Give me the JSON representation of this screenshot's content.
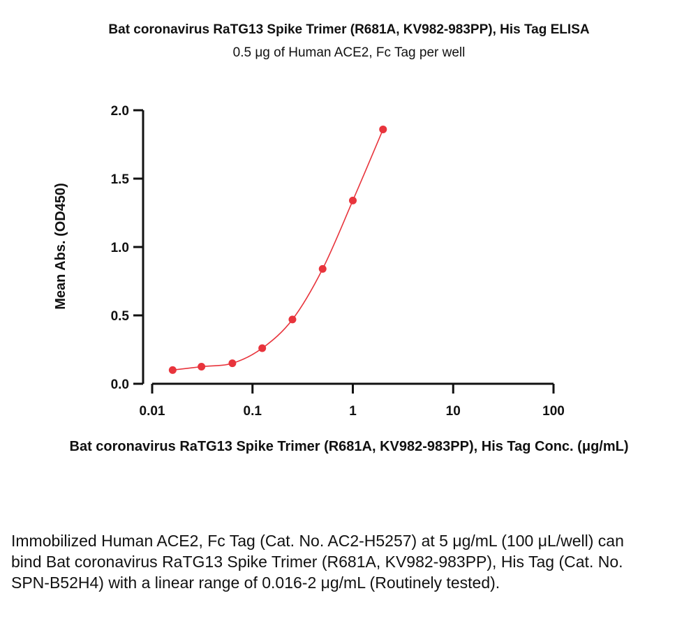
{
  "title": "Bat coronavirus RaTG13 Spike Trimer (R681A, KV982-983PP), His Tag ELISA",
  "subtitle": "0.5 μg of Human ACE2, Fc Tag per well",
  "caption": "Immobilized Human ACE2, Fc Tag (Cat. No. AC2-H5257) at 5 μg/mL (100 μL/well) can bind Bat coronavirus RaTG13 Spike Trimer (R681A, KV982-983PP), His Tag (Cat. No. SPN-B52H4) with a linear range of 0.016-2 μg/mL (Routinely tested).",
  "colors": {
    "series": "#e8343c",
    "axis": "#111111"
  },
  "chart_data": {
    "type": "scatter",
    "title": "Bat coronavirus RaTG13 Spike Trimer (R681A, KV982-983PP), His Tag ELISA",
    "subtitle": "0.5 μg of Human ACE2, Fc Tag per well",
    "xlabel": "Bat coronavirus RaTG13 Spike Trimer (R681A, KV982-983PP), His Tag Conc. (μg/mL)",
    "ylabel": "Mean Abs. (OD450)",
    "xscale": "log",
    "xlim": [
      0.01,
      100
    ],
    "ylim": [
      0,
      2.0
    ],
    "xticks": [
      0.01,
      0.1,
      1,
      10,
      100
    ],
    "xtick_labels": [
      "0.01",
      "0.1",
      "1",
      "10",
      "100"
    ],
    "yticks": [
      0,
      0.5,
      1.0,
      1.5,
      2.0
    ],
    "ytick_labels": [
      "0.0",
      "0.5",
      "1.0",
      "1.5",
      "2.0"
    ],
    "grid": false,
    "fit_curve": true,
    "series": [
      {
        "x": [
          0.016,
          0.031,
          0.063,
          0.125,
          0.25,
          0.5,
          1,
          2
        ],
        "y": [
          0.1,
          0.125,
          0.15,
          0.26,
          0.47,
          0.84,
          1.34,
          1.86
        ]
      }
    ]
  }
}
